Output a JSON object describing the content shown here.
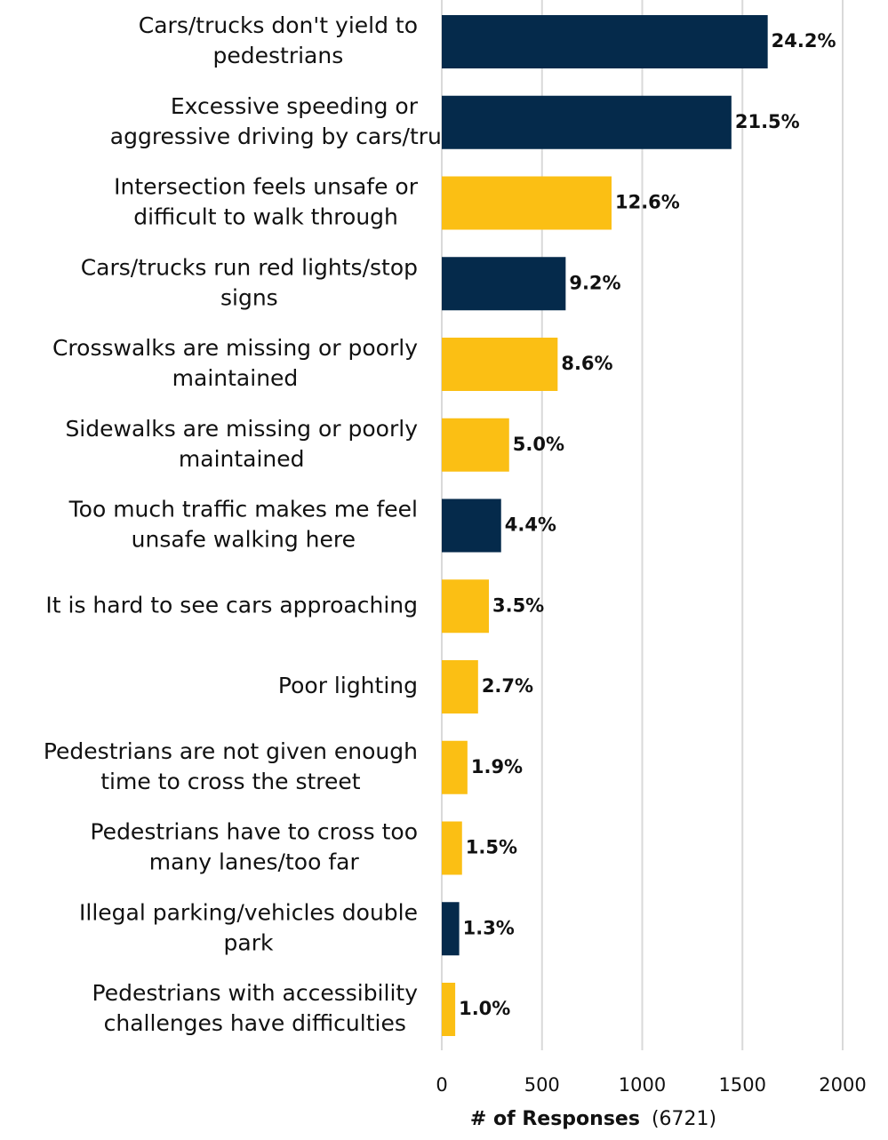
{
  "chart_data": {
    "type": "barh",
    "categories": [
      "Cars/trucks don't yield to\npedestrians",
      "Excessive speeding or\naggressive driving by cars/trucks",
      "Intersection feels unsafe or\ndifficult to walk through",
      "Cars/trucks run red lights/stop\nsigns",
      "Crosswalks are missing or poorly\nmaintained",
      "Sidewalks are missing or poorly\nmaintained",
      "Too much traffic makes me feel\nunsafe walking here",
      "It is hard to see cars approaching",
      "Poor lighting",
      "Pedestrians are not given enough\ntime to cross the street",
      "Pedestrians have to cross too\nmany lanes/too far",
      "Illegal parking/vehicles double\npark",
      "Pedestrians with accessibility\nchallenges have difficulties"
    ],
    "values": [
      1626,
      1445,
      847,
      618,
      578,
      336,
      296,
      235,
      181,
      128,
      101,
      87,
      67
    ],
    "value_labels": [
      "24.2%",
      "21.5%",
      "12.6%",
      "9.2%",
      "8.6%",
      "5.0%",
      "4.4%",
      "3.5%",
      "2.7%",
      "1.9%",
      "1.5%",
      "1.3%",
      "1.0%"
    ],
    "colors": [
      "#052a4b",
      "#052a4b",
      "#fbbf14",
      "#052a4b",
      "#fbbf14",
      "#fbbf14",
      "#052a4b",
      "#fbbf14",
      "#fbbf14",
      "#fbbf14",
      "#fbbf14",
      "#052a4b",
      "#fbbf14"
    ],
    "xlim": [
      0,
      2000
    ],
    "xticks": [
      0,
      500,
      1000,
      1500,
      2000
    ],
    "grid": true,
    "xlabel": "# of Responses",
    "xlabel_note": "(6721)"
  }
}
